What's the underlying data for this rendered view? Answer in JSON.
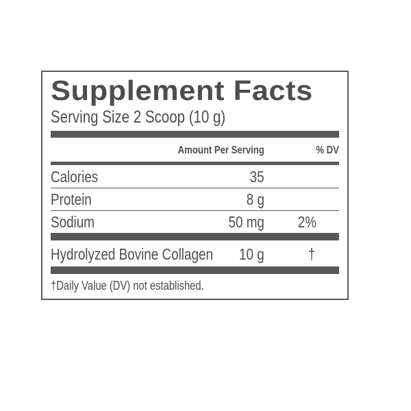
{
  "title": "Supplement Facts",
  "serving_size": "Serving Size 2 Scoop (10 g)",
  "header": {
    "amount": "Amount Per Serving",
    "dv": "% DV"
  },
  "rows": [
    {
      "name": "Calories",
      "amount": "35",
      "dv": ""
    },
    {
      "name": "Protein",
      "amount": "8 g",
      "dv": ""
    },
    {
      "name": "Sodium",
      "amount": "50 mg",
      "dv": "2%"
    },
    {
      "name": "Hydrolyzed Bovine Collagen",
      "amount": "10 g",
      "dv": "†"
    }
  ],
  "footnote": "†Daily Value (DV) not established.",
  "colors": {
    "text": "#4d4d4f",
    "bars": "#58585a"
  }
}
